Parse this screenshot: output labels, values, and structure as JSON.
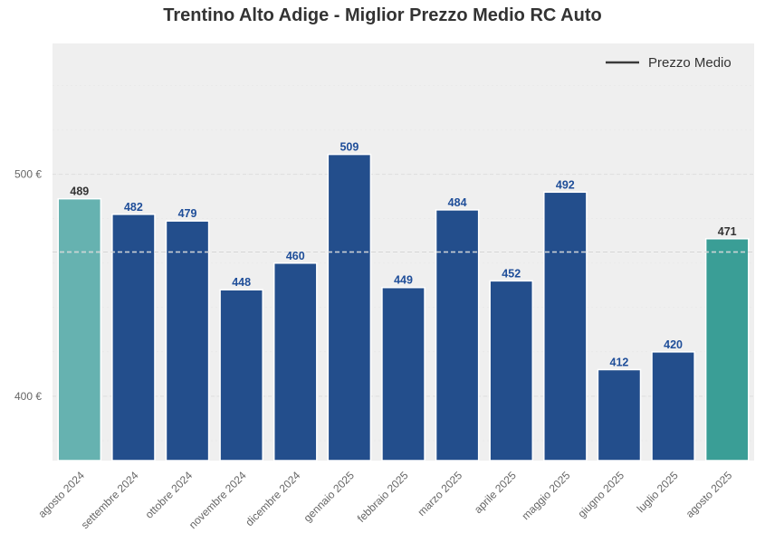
{
  "chart_data": {
    "type": "bar",
    "title": "Trentino Alto Adige - Miglior Prezzo Medio RC Auto",
    "categories": [
      "agosto 2024",
      "settembre 2024",
      "ottobre 2024",
      "novembre 2024",
      "dicembre 2024",
      "gennaio 2025",
      "febbraio 2025",
      "marzo 2025",
      "aprile 2025",
      "maggio 2025",
      "giugno 2025",
      "luglio 2025",
      "agosto 2025"
    ],
    "values": [
      489,
      482,
      479,
      448,
      460,
      509,
      449,
      484,
      452,
      492,
      412,
      420,
      471
    ],
    "value_labels": [
      "489",
      "482",
      "479",
      "448",
      "460",
      "509",
      "449",
      "484",
      "452",
      "492",
      "412",
      "420",
      "471"
    ],
    "bar_colors": [
      "#66b2b0",
      "#234e8c",
      "#234e8c",
      "#234e8c",
      "#234e8c",
      "#234e8c",
      "#234e8c",
      "#234e8c",
      "#234e8c",
      "#234e8c",
      "#234e8c",
      "#234e8c",
      "#3a9e96"
    ],
    "label_colors": [
      "#333333",
      "#1f4e99",
      "#1f4e99",
      "#1f4e99",
      "#1f4e99",
      "#1f4e99",
      "#1f4e99",
      "#1f4e99",
      "#1f4e99",
      "#1f4e99",
      "#1f4e99",
      "#1f4e99",
      "#333333"
    ],
    "ylim": [
      371,
      559
    ],
    "yticks": [
      400,
      500
    ],
    "ytick_labels": [
      "400 €",
      "500 €"
    ],
    "average": {
      "name": "Prezzo Medio",
      "value": 465
    },
    "legend": {
      "label": "Prezzo Medio",
      "position": "top-right"
    },
    "grid": true,
    "background": "#efefef"
  }
}
